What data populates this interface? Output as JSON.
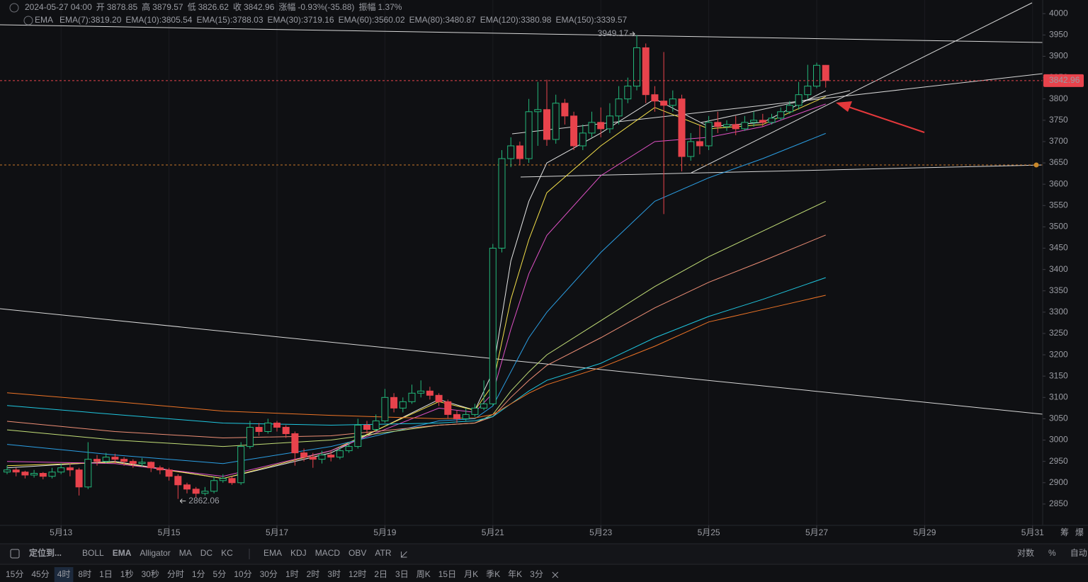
{
  "chart_data": {
    "type": "candlestick",
    "categories": [
      null,
      null,
      null,
      null,
      null,
      null,
      "5月13",
      null,
      null,
      null,
      null,
      null,
      null,
      null,
      null,
      null,
      null,
      null,
      "5月15",
      null,
      null,
      null,
      null,
      null,
      null,
      null,
      null,
      null,
      null,
      null,
      "5月17",
      null,
      null,
      null,
      null,
      null,
      null,
      null,
      null,
      null,
      null,
      null,
      "5月19",
      null,
      null,
      null,
      null,
      null,
      null,
      null,
      null,
      null,
      null,
      null,
      "5月21",
      null,
      null,
      null,
      null,
      null,
      null,
      null,
      null,
      null,
      null,
      null,
      "5月23",
      null,
      null,
      null,
      null,
      null,
      null,
      null,
      null,
      null,
      null,
      null,
      "5月25",
      null,
      null,
      null,
      null,
      null,
      null,
      null,
      null,
      null,
      null,
      null,
      "5月27",
      null,
      null,
      null,
      null,
      null,
      null,
      null,
      null,
      null,
      null,
      null,
      "5月29",
      null,
      null,
      null,
      null,
      null,
      null,
      null,
      null,
      null,
      null,
      null,
      "5月31",
      null
    ],
    "open": [
      2925,
      2930,
      2925,
      2918,
      2922,
      2915,
      2925,
      2935,
      2930,
      2890,
      2955,
      2950,
      2960,
      2955,
      2950,
      2945,
      2948,
      2935,
      2930,
      2915,
      2895,
      2885,
      2875,
      2880,
      2905,
      2910,
      2900,
      2985,
      3030,
      3020,
      3040,
      3030,
      3015,
      2970,
      2960,
      2955,
      2965,
      2960,
      2975,
      2985,
      3035,
      3025,
      3045,
      3100,
      3075,
      3090,
      3110,
      3115,
      3105,
      3090,
      3060,
      3050,
      3060,
      3075,
      3085,
      3450,
      3660,
      3690,
      3660,
      3770,
      3775,
      3705,
      3790,
      3760,
      3690,
      3720,
      3745,
      3730,
      3760,
      3800,
      3830,
      3920,
      3810,
      3795,
      3785,
      3800,
      3665,
      3700,
      3690,
      3745,
      3735,
      3740,
      3730,
      3745,
      3750,
      3745,
      3755,
      3770,
      3785,
      3810,
      3830,
      3878.85,
      null,
      null,
      null,
      null,
      null,
      null,
      null,
      null,
      null,
      null,
      null,
      null,
      null,
      null,
      null,
      null,
      null,
      null,
      null,
      null,
      null,
      null,
      null,
      null
    ],
    "high": [
      2940,
      2935,
      2928,
      2930,
      2925,
      2935,
      2945,
      2945,
      2935,
      2995,
      2965,
      2970,
      2968,
      2960,
      2955,
      2958,
      2950,
      2940,
      2935,
      2920,
      2900,
      2890,
      2890,
      2915,
      2920,
      2915,
      2995,
      3045,
      3040,
      3050,
      3045,
      3035,
      3020,
      2980,
      2970,
      2975,
      2975,
      2985,
      2995,
      3050,
      3045,
      3060,
      3120,
      3110,
      3100,
      3130,
      3140,
      3125,
      3110,
      3095,
      3070,
      3075,
      3085,
      3140,
      3460,
      3680,
      3710,
      3700,
      3800,
      3840,
      3845,
      3810,
      3800,
      3770,
      3740,
      3770,
      3780,
      3790,
      3830,
      3850,
      3949.17,
      3930,
      3830,
      3910,
      3820,
      3810,
      3720,
      3740,
      3760,
      3770,
      3750,
      3760,
      3760,
      3770,
      3765,
      3765,
      3780,
      3795,
      3840,
      3880,
      3885,
      3879.57,
      null,
      null,
      null,
      null,
      null,
      null,
      null,
      null,
      null,
      null,
      null,
      null,
      null,
      null,
      null,
      null,
      null,
      null,
      null,
      null,
      null,
      null,
      null,
      null
    ],
    "low": [
      2920,
      2915,
      2910,
      2912,
      2908,
      2910,
      2920,
      2915,
      2870,
      2885,
      2940,
      2945,
      2945,
      2940,
      2935,
      2938,
      2925,
      2920,
      2905,
      2862.06,
      2875,
      2865,
      2870,
      2875,
      2900,
      2895,
      2895,
      2980,
      3010,
      3015,
      3020,
      3005,
      2940,
      2950,
      2935,
      2945,
      2950,
      2955,
      2970,
      2980,
      3015,
      3020,
      3040,
      3065,
      3065,
      3085,
      3100,
      3095,
      3080,
      3050,
      3040,
      3045,
      3055,
      3070,
      3080,
      3440,
      3640,
      3645,
      3650,
      3690,
      3690,
      3695,
      3740,
      3680,
      3680,
      3710,
      3710,
      3720,
      3740,
      3790,
      3820,
      3790,
      3770,
      3530,
      3770,
      3630,
      3655,
      3670,
      3680,
      3720,
      3725,
      3715,
      3725,
      3735,
      3735,
      3740,
      3750,
      3765,
      3775,
      3800,
      3825,
      3826.62,
      null,
      null,
      null,
      null,
      null,
      null,
      null,
      null,
      null,
      null,
      null,
      null,
      null,
      null,
      null,
      null,
      null,
      null,
      null,
      null,
      null,
      null,
      null,
      null
    ],
    "close": [
      2930,
      2925,
      2918,
      2922,
      2915,
      2925,
      2935,
      2930,
      2890,
      2955,
      2950,
      2960,
      2955,
      2950,
      2945,
      2948,
      2935,
      2930,
      2915,
      2895,
      2885,
      2875,
      2880,
      2905,
      2910,
      2900,
      2985,
      3030,
      3020,
      3040,
      3030,
      3015,
      2970,
      2960,
      2955,
      2965,
      2960,
      2975,
      2985,
      3035,
      3025,
      3045,
      3100,
      3075,
      3090,
      3110,
      3115,
      3105,
      3090,
      3060,
      3050,
      3060,
      3075,
      3085,
      3450,
      3660,
      3690,
      3660,
      3770,
      3775,
      3705,
      3790,
      3760,
      3690,
      3720,
      3745,
      3730,
      3760,
      3800,
      3830,
      3920,
      3810,
      3795,
      3785,
      3800,
      3665,
      3700,
      3690,
      3745,
      3735,
      3740,
      3730,
      3745,
      3750,
      3745,
      3755,
      3770,
      3785,
      3810,
      3830,
      3878.85,
      3842.96,
      null,
      null,
      null,
      null,
      null,
      null,
      null,
      null,
      null,
      null,
      null,
      null,
      null,
      null,
      null,
      null,
      null,
      null,
      null,
      null,
      null,
      null,
      null,
      null
    ],
    "up_color": "#23b77a",
    "down_color": "#e8434c",
    "series": [
      {
        "name": "EMA(7):3819.20",
        "color": "#e6e6e6",
        "x": [
          0,
          12,
          24,
          36,
          48,
          52,
          54,
          56,
          58,
          60,
          66,
          72,
          78,
          84,
          91
        ],
        "values": [
          2935,
          2950,
          2910,
          2970,
          3095,
          3070,
          3160,
          3420,
          3560,
          3650,
          3720,
          3800,
          3735,
          3745,
          3819.2
        ]
      },
      {
        "name": "EMA(10):3805.54",
        "color": "#f3df4a",
        "x": [
          0,
          12,
          24,
          36,
          48,
          52,
          54,
          56,
          58,
          60,
          66,
          72,
          78,
          84,
          91
        ],
        "values": [
          2940,
          2948,
          2910,
          2975,
          3090,
          3070,
          3130,
          3330,
          3470,
          3580,
          3690,
          3780,
          3730,
          3740,
          3805.54
        ]
      },
      {
        "name": "EMA(15):3788.03",
        "color": "#e052c6",
        "x": [
          0,
          12,
          24,
          36,
          48,
          52,
          54,
          56,
          58,
          60,
          66,
          72,
          78,
          84,
          91
        ],
        "values": [
          2950,
          2945,
          2915,
          2975,
          3075,
          3065,
          3110,
          3260,
          3390,
          3480,
          3620,
          3700,
          3710,
          3735,
          3788.03
        ]
      },
      {
        "name": "EMA(30):3719.16",
        "color": "#2b9fe4",
        "x": [
          0,
          12,
          24,
          36,
          48,
          52,
          54,
          56,
          58,
          60,
          66,
          72,
          78,
          84,
          91
        ],
        "values": [
          2990,
          2965,
          2945,
          2985,
          3045,
          3050,
          3080,
          3160,
          3240,
          3300,
          3440,
          3560,
          3615,
          3660,
          3719.16
        ]
      },
      {
        "name": "EMA(60):3560.02",
        "color": "#c3df78",
        "x": [
          0,
          12,
          24,
          36,
          48,
          52,
          54,
          56,
          58,
          60,
          66,
          72,
          78,
          84,
          91
        ],
        "values": [
          3024,
          3000,
          2985,
          3000,
          3035,
          3040,
          3060,
          3115,
          3160,
          3200,
          3280,
          3360,
          3430,
          3490,
          3560.02
        ]
      },
      {
        "name": "EMA(80):3480.87",
        "color": "#ef8f76",
        "x": [
          0,
          12,
          24,
          36,
          48,
          52,
          54,
          56,
          58,
          60,
          66,
          72,
          78,
          84,
          91
        ],
        "values": [
          3044,
          3020,
          3005,
          3010,
          3035,
          3040,
          3055,
          3100,
          3140,
          3175,
          3240,
          3310,
          3370,
          3420,
          3480.87
        ]
      },
      {
        "name": "EMA(120):3380.98",
        "color": "#1fc6df",
        "x": [
          0,
          12,
          24,
          36,
          48,
          52,
          54,
          56,
          58,
          60,
          66,
          72,
          78,
          84,
          91
        ],
        "values": [
          3081,
          3060,
          3040,
          3035,
          3040,
          3045,
          3055,
          3085,
          3115,
          3140,
          3180,
          3240,
          3290,
          3330,
          3380.98
        ]
      },
      {
        "name": "EMA(150):3339.57",
        "color": "#ee7426",
        "x": [
          0,
          12,
          24,
          36,
          48,
          52,
          54,
          56,
          58,
          60,
          66,
          72,
          78,
          84,
          91
        ],
        "values": [
          3111,
          3090,
          3068,
          3058,
          3050,
          3052,
          3060,
          3085,
          3110,
          3130,
          3170,
          3220,
          3277,
          3306,
          3339.57
        ]
      }
    ],
    "ylim": [
      2800,
      4032
    ],
    "yticks": [
      2850,
      2900,
      2950,
      3000,
      3050,
      3100,
      3150,
      3200,
      3250,
      3300,
      3350,
      3400,
      3450,
      3500,
      3550,
      3600,
      3650,
      3700,
      3750,
      3800,
      3850,
      3900,
      3950,
      4000
    ],
    "xgrid": true,
    "indicator": "EMA"
  },
  "header": {
    "datetime": "2024-05-27 04:00",
    "open_label": "开",
    "high_label": "高",
    "low_label": "低",
    "close_label": "收",
    "change_label": "涨幅",
    "change": "-0.93%(-35.88)",
    "amplitude_label": "振幅",
    "amplitude": "1.37%"
  },
  "corner": [
    "筹",
    "爆"
  ],
  "toolbar": {
    "locate": "定位到...",
    "main_indicators": [
      "BOLL",
      "EMA",
      "Alligator",
      "MA",
      "DC",
      "KC"
    ],
    "active_main": 1,
    "sub_indicators": [
      "EMA",
      "KDJ",
      "MACD",
      "OBV",
      "ATR"
    ],
    "right": [
      "对数",
      "%",
      "自动"
    ],
    "active_right": 2,
    "intervals": [
      "15分",
      "45分",
      "4时",
      "8时",
      "1日",
      "1秒",
      "30秒",
      "分时",
      "1分",
      "5分",
      "10分",
      "30分",
      "1时",
      "2时",
      "3时",
      "12时",
      "2日",
      "3日",
      "周K",
      "15日",
      "月K",
      "季K",
      "年K",
      "3分"
    ],
    "active_interval": 2
  }
}
